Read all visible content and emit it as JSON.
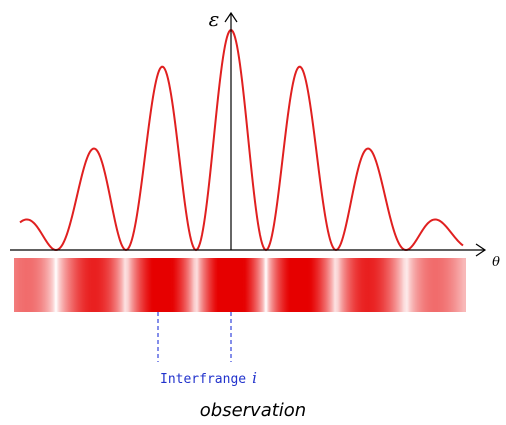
{
  "axis": {
    "y_label": "ε",
    "x_label": "θ"
  },
  "annotation": {
    "text": "Interfrange",
    "symbol": "i"
  },
  "caption": "observation"
}
